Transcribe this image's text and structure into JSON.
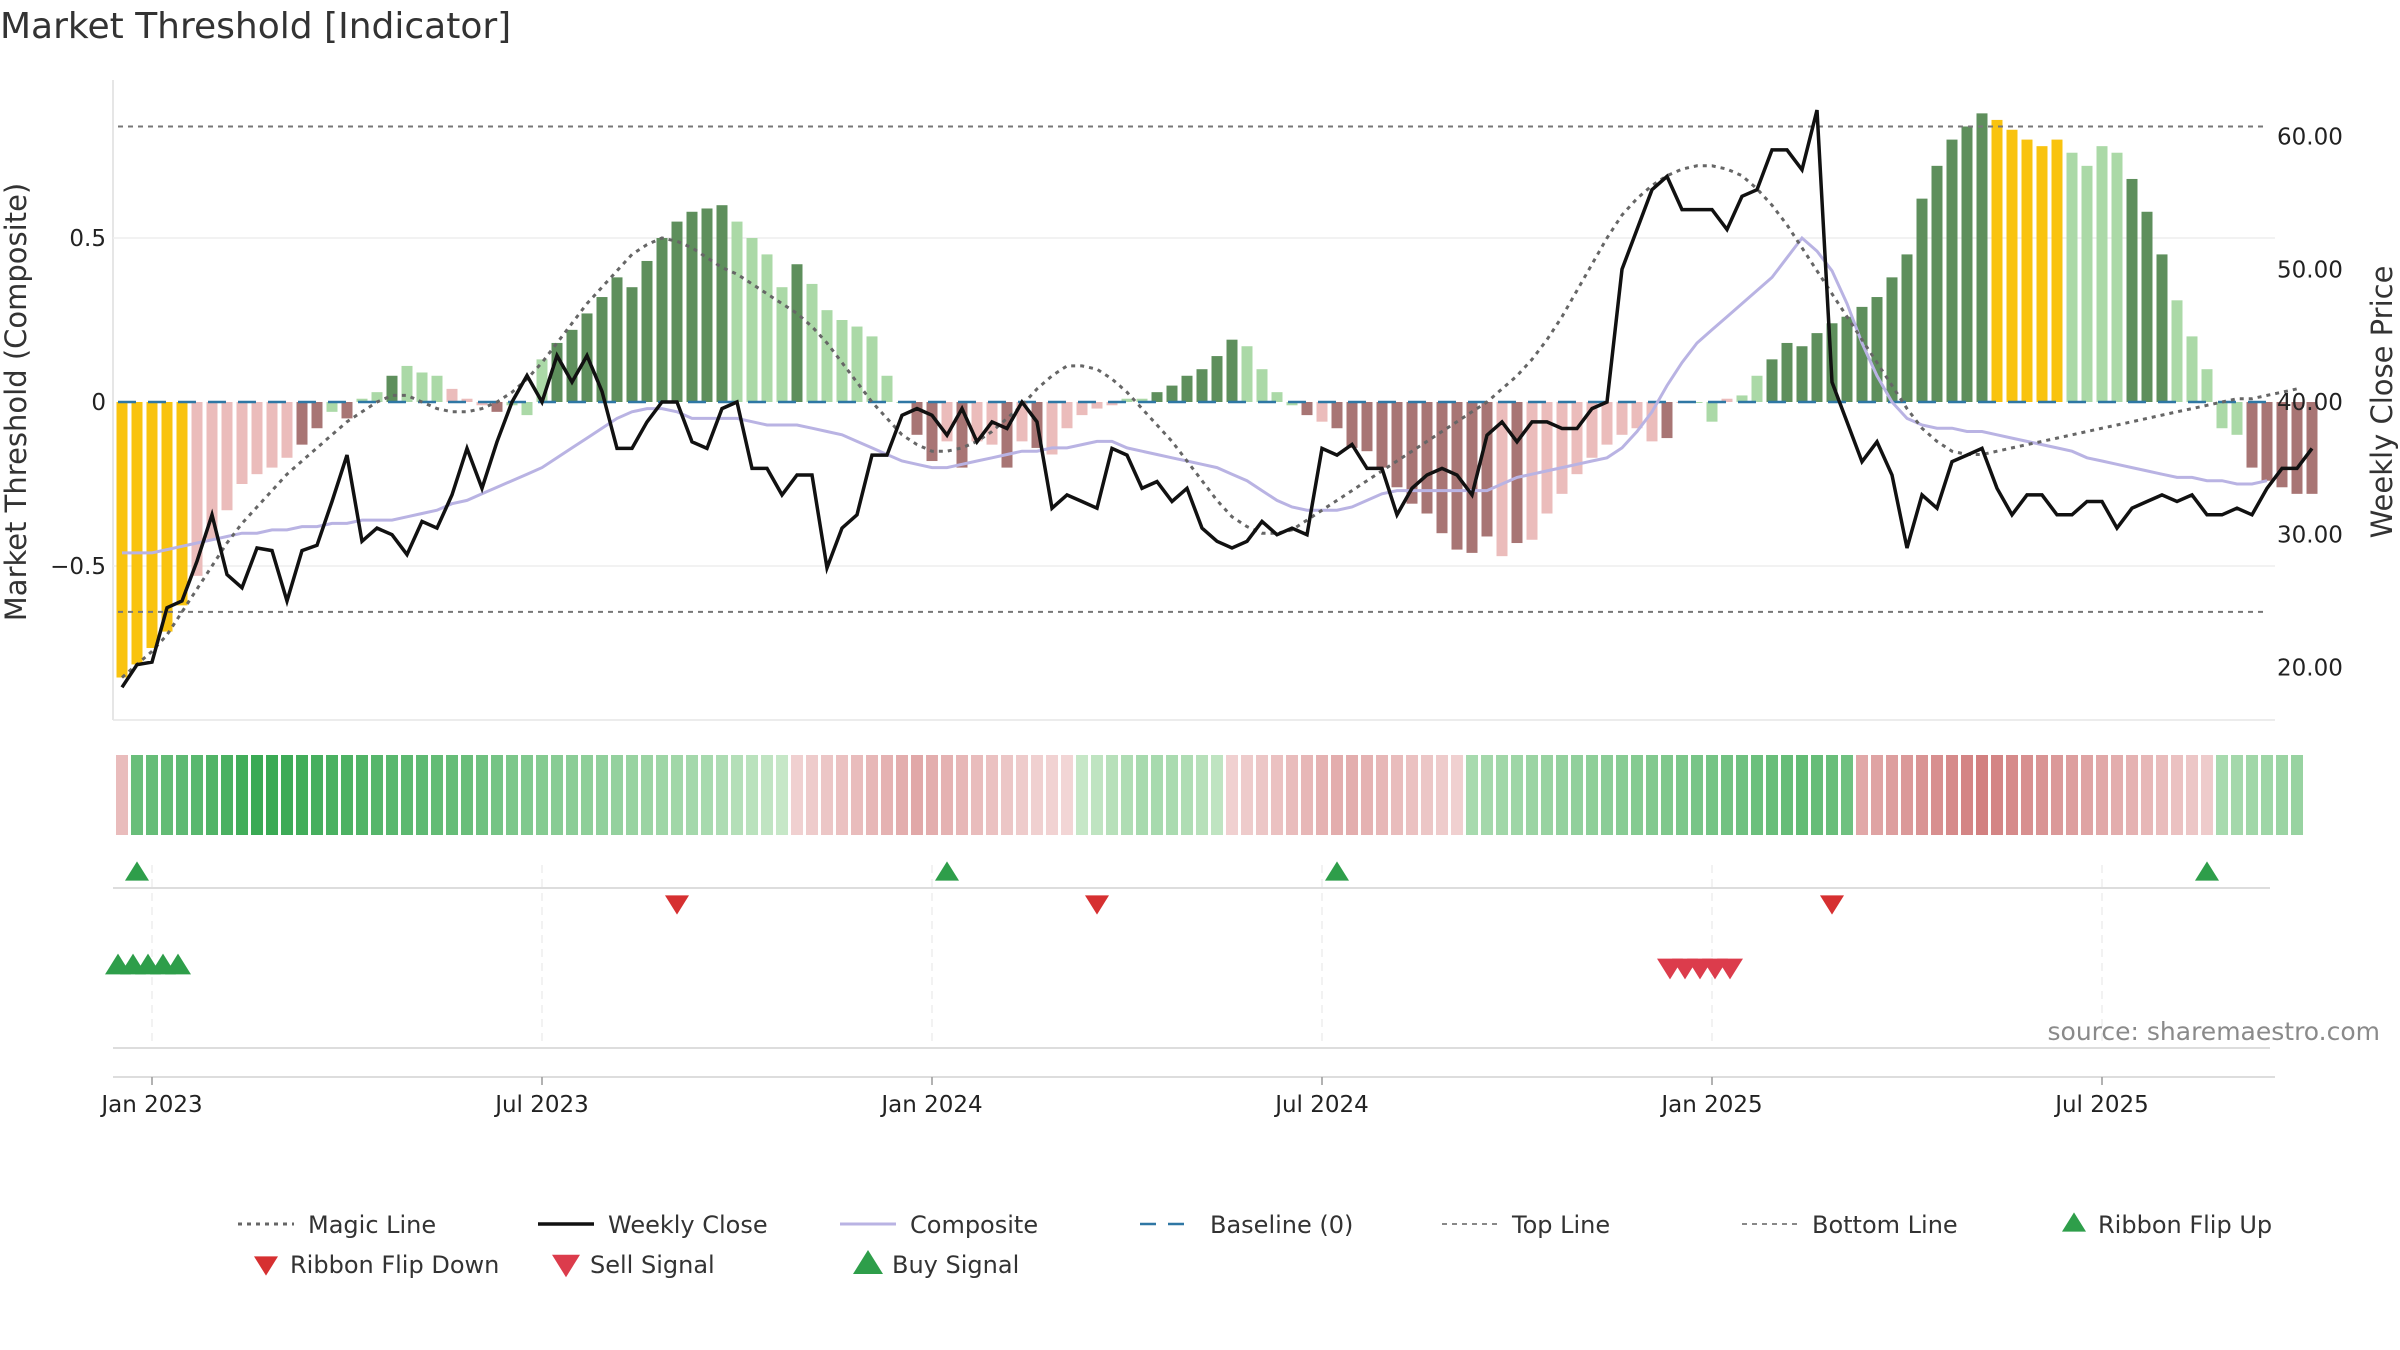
{
  "title": "Market Threshold [Indicator]",
  "source_text": "source: sharemaestro.com",
  "colors": {
    "gold": "#f9c30f",
    "green_dark": "#5e8f5c",
    "green_light": "#abd9a7",
    "red_dark": "#a87574",
    "red_light": "#ebbcbb",
    "composite": "#b9b3e3",
    "magic": "#666666",
    "close": "#111111",
    "baseline": "#2f77a4",
    "buy": "#2e9e4a",
    "sell": "#dc3c4c",
    "flip_down": "#d63031"
  },
  "chart_data": {
    "type": "bar",
    "title": "Market Threshold [Indicator]",
    "ylabel_left": "Market Threshold (Composite)",
    "ylabel_right": "Weekly Close Price",
    "left_ticks": [
      "0.5",
      "0",
      "−0.5"
    ],
    "left_tick_values": [
      0.5,
      0,
      -0.5
    ],
    "right_ticks": [
      "60.00",
      "50.00",
      "40.00",
      "30.00",
      "20.00"
    ],
    "right_tick_values": [
      60,
      50,
      40,
      30,
      20
    ],
    "ylim_left": [
      -0.98,
      0.98
    ],
    "ylim_right": [
      17.0,
      65.5
    ],
    "top_line": 0.84,
    "bottom_line": -0.64,
    "x_ticks": [
      "Jan 2023",
      "Jul 2023",
      "Jan 2024",
      "Jul 2024",
      "Jan 2025",
      "Jul 2025"
    ],
    "x_tick_weeks": [
      2,
      28,
      54,
      80,
      106,
      132
    ],
    "n_weeks": 144,
    "composite_bars": [
      -0.84,
      -0.8,
      -0.75,
      -0.7,
      -0.62,
      -0.53,
      -0.42,
      -0.33,
      -0.25,
      -0.22,
      -0.2,
      -0.17,
      -0.13,
      -0.08,
      -0.03,
      -0.05,
      0.01,
      0.03,
      0.08,
      0.11,
      0.09,
      0.08,
      0.04,
      0.01,
      -0.01,
      -0.03,
      -0.01,
      -0.04,
      0.13,
      0.18,
      0.22,
      0.27,
      0.32,
      0.38,
      0.35,
      0.43,
      0.5,
      0.55,
      0.58,
      0.59,
      0.6,
      0.55,
      0.5,
      0.45,
      0.35,
      0.42,
      0.36,
      0.28,
      0.25,
      0.23,
      0.2,
      0.08,
      0.0,
      -0.1,
      -0.18,
      -0.12,
      -0.2,
      -0.12,
      -0.13,
      -0.2,
      -0.12,
      -0.14,
      -0.16,
      -0.08,
      -0.04,
      -0.02,
      -0.01,
      0.01,
      0.01,
      0.03,
      0.05,
      0.08,
      0.1,
      0.14,
      0.19,
      0.17,
      0.1,
      0.03,
      -0.01,
      -0.04,
      -0.06,
      -0.08,
      -0.14,
      -0.15,
      -0.2,
      -0.26,
      -0.31,
      -0.34,
      -0.4,
      -0.45,
      -0.46,
      -0.41,
      -0.47,
      -0.43,
      -0.42,
      -0.34,
      -0.28,
      -0.22,
      -0.17,
      -0.13,
      -0.1,
      -0.08,
      -0.12,
      -0.11,
      0.0,
      0.0,
      -0.06,
      0.01,
      0.02,
      0.08,
      0.13,
      0.18,
      0.17,
      0.21,
      0.24,
      0.26,
      0.29,
      0.32,
      0.38,
      0.45,
      0.62,
      0.72,
      0.8,
      0.84,
      0.88,
      0.86,
      0.83,
      0.8,
      0.78,
      0.8,
      0.76,
      0.72,
      0.78,
      0.76,
      0.68,
      0.58,
      0.45,
      0.31,
      0.2,
      0.1,
      -0.08,
      -0.1,
      -0.2,
      -0.24,
      -0.26,
      -0.28,
      -0.28
    ],
    "bar_tier": [
      "gold",
      "gold",
      "gold",
      "gold",
      "gold",
      "rl",
      "rl",
      "rl",
      "rl",
      "rl",
      "rl",
      "rl",
      "rd",
      "rd",
      "gl",
      "rd",
      "gl",
      "gl",
      "gd",
      "gl",
      "gl",
      "gl",
      "rl",
      "rl",
      "rl",
      "rd",
      "gl",
      "gl",
      "gl",
      "gd",
      "gd",
      "gd",
      "gd",
      "gd",
      "gd",
      "gd",
      "gd",
      "gd",
      "gd",
      "gd",
      "gd",
      "gl",
      "gl",
      "gl",
      "gl",
      "gd",
      "gl",
      "gl",
      "gl",
      "gl",
      "gl",
      "gl",
      "gl",
      "rd",
      "rd",
      "rl",
      "rd",
      "rl",
      "rl",
      "rd",
      "rl",
      "rd",
      "rl",
      "rl",
      "rl",
      "rl",
      "rl",
      "gl",
      "gl",
      "gd",
      "gd",
      "gd",
      "gd",
      "gd",
      "gd",
      "gl",
      "gl",
      "gl",
      "gl",
      "rd",
      "rl",
      "rd",
      "rd",
      "rd",
      "rd",
      "rd",
      "rd",
      "rd",
      "rd",
      "rd",
      "rd",
      "rd",
      "rl",
      "rd",
      "rl",
      "rl",
      "rl",
      "rl",
      "rl",
      "rl",
      "rl",
      "rl",
      "rl",
      "rd",
      "rl",
      "gl",
      "gl",
      "rl",
      "gl",
      "gl",
      "gd",
      "gd",
      "gd",
      "gd",
      "gd",
      "gd",
      "gd",
      "gd",
      "gd",
      "gd",
      "gd",
      "gd",
      "gd",
      "gd",
      "gd",
      "gold",
      "gold",
      "gold",
      "gold",
      "gold",
      "gl",
      "gl",
      "gl",
      "gl",
      "gd",
      "gd",
      "gd",
      "gl",
      "gl",
      "gl",
      "gl",
      "gl",
      "rd",
      "rd",
      "rd",
      "rd",
      "rd",
      "rd",
      "rd"
    ],
    "series": [
      {
        "name": "Weekly Close",
        "axis": "right",
        "values": [
          18.5,
          20.2,
          20.4,
          24.5,
          25.0,
          28.0,
          31.5,
          27.0,
          26.0,
          29.0,
          28.8,
          25.0,
          28.8,
          29.2,
          32.5,
          36.0,
          29.5,
          30.5,
          30.0,
          28.5,
          31.0,
          30.5,
          33.0,
          36.5,
          33.5,
          37.0,
          40.0,
          42.0,
          40.0,
          43.5,
          41.5,
          43.5,
          40.8,
          36.5,
          36.5,
          38.5,
          40.0,
          40.0,
          37.0,
          36.5,
          39.5,
          40.0,
          35.0,
          35.0,
          33.0,
          34.5,
          34.5,
          27.5,
          30.5,
          31.5,
          36.0,
          36.0,
          39.0,
          39.5,
          39.0,
          37.5,
          39.5,
          37.0,
          38.5,
          38.0,
          40.0,
          38.5,
          32.0,
          33.0,
          32.5,
          32.0,
          36.5,
          36.0,
          33.5,
          34.0,
          32.5,
          33.5,
          30.5,
          29.5,
          29.0,
          29.5,
          31.0,
          30.0,
          30.5,
          30.0,
          36.5,
          36.0,
          36.8,
          35.0,
          35.0,
          31.5,
          33.5,
          34.5,
          35.0,
          34.5,
          33.0,
          37.5,
          38.5,
          37.0,
          38.5,
          38.5,
          38.0,
          38.0,
          39.5,
          40.0,
          50.0,
          53.0,
          56.0,
          57.0,
          54.5,
          54.5,
          54.5,
          53.0,
          55.5,
          56.0,
          59.0,
          59.0,
          57.5,
          62.0,
          41.5,
          38.5,
          35.5,
          37.0,
          34.5,
          29.0,
          33.0,
          32.0,
          35.5,
          36.0,
          36.5,
          33.5,
          31.5,
          33.0,
          33.0,
          31.5,
          31.5,
          32.5,
          32.5,
          30.5,
          32.0,
          32.5,
          33.0,
          32.5,
          33.0,
          31.5,
          31.5,
          32.0,
          31.5,
          33.5,
          35.0,
          35.0,
          36.5
        ]
      },
      {
        "name": "Magic Line",
        "axis": "left",
        "values": [
          -0.84,
          -0.8,
          -0.76,
          -0.71,
          -0.64,
          -0.57,
          -0.5,
          -0.43,
          -0.37,
          -0.32,
          -0.27,
          -0.22,
          -0.18,
          -0.14,
          -0.1,
          -0.06,
          -0.03,
          0.0,
          0.02,
          0.02,
          0.0,
          -0.02,
          -0.03,
          -0.03,
          -0.02,
          0.0,
          0.03,
          0.07,
          0.12,
          0.18,
          0.24,
          0.3,
          0.35,
          0.4,
          0.45,
          0.48,
          0.5,
          0.49,
          0.47,
          0.44,
          0.41,
          0.39,
          0.36,
          0.33,
          0.3,
          0.27,
          0.23,
          0.18,
          0.12,
          0.06,
          0.0,
          -0.05,
          -0.1,
          -0.13,
          -0.15,
          -0.15,
          -0.14,
          -0.12,
          -0.09,
          -0.05,
          -0.01,
          0.04,
          0.08,
          0.11,
          0.11,
          0.1,
          0.07,
          0.03,
          -0.02,
          -0.07,
          -0.12,
          -0.18,
          -0.24,
          -0.3,
          -0.35,
          -0.38,
          -0.4,
          -0.4,
          -0.39,
          -0.36,
          -0.33,
          -0.3,
          -0.27,
          -0.24,
          -0.21,
          -0.18,
          -0.15,
          -0.12,
          -0.09,
          -0.06,
          -0.03,
          0.0,
          0.04,
          0.08,
          0.13,
          0.19,
          0.26,
          0.34,
          0.42,
          0.5,
          0.57,
          0.62,
          0.66,
          0.69,
          0.71,
          0.72,
          0.72,
          0.71,
          0.69,
          0.65,
          0.6,
          0.54,
          0.47,
          0.4,
          0.33,
          0.26,
          0.19,
          0.12,
          0.05,
          -0.02,
          -0.08,
          -0.12,
          -0.15,
          -0.16,
          -0.16,
          -0.15,
          -0.14,
          -0.13,
          -0.12,
          -0.11,
          -0.1,
          -0.09,
          -0.08,
          -0.07,
          -0.06,
          -0.05,
          -0.04,
          -0.03,
          -0.02,
          -0.01,
          0.0,
          0.01,
          0.01,
          0.02,
          0.03,
          0.04
        ]
      },
      {
        "name": "Composite",
        "axis": "left",
        "values": [
          -0.46,
          -0.46,
          -0.46,
          -0.45,
          -0.44,
          -0.43,
          -0.42,
          -0.41,
          -0.4,
          -0.4,
          -0.39,
          -0.39,
          -0.38,
          -0.38,
          -0.37,
          -0.37,
          -0.36,
          -0.36,
          -0.36,
          -0.35,
          -0.34,
          -0.33,
          -0.31,
          -0.3,
          -0.28,
          -0.26,
          -0.24,
          -0.22,
          -0.2,
          -0.17,
          -0.14,
          -0.11,
          -0.08,
          -0.05,
          -0.03,
          -0.02,
          -0.02,
          -0.03,
          -0.05,
          -0.05,
          -0.05,
          -0.05,
          -0.06,
          -0.07,
          -0.07,
          -0.07,
          -0.08,
          -0.09,
          -0.1,
          -0.12,
          -0.14,
          -0.16,
          -0.18,
          -0.19,
          -0.2,
          -0.2,
          -0.19,
          -0.18,
          -0.17,
          -0.16,
          -0.15,
          -0.15,
          -0.14,
          -0.14,
          -0.13,
          -0.12,
          -0.12,
          -0.14,
          -0.15,
          -0.16,
          -0.17,
          -0.18,
          -0.19,
          -0.2,
          -0.22,
          -0.24,
          -0.27,
          -0.3,
          -0.32,
          -0.33,
          -0.33,
          -0.33,
          -0.32,
          -0.3,
          -0.28,
          -0.27,
          -0.27,
          -0.27,
          -0.27,
          -0.27,
          -0.27,
          -0.27,
          -0.25,
          -0.23,
          -0.22,
          -0.21,
          -0.2,
          -0.19,
          -0.18,
          -0.17,
          -0.14,
          -0.09,
          -0.03,
          0.05,
          0.12,
          0.18,
          0.22,
          0.26,
          0.3,
          0.34,
          0.38,
          0.44,
          0.5,
          0.46,
          0.4,
          0.3,
          0.18,
          0.08,
          0.0,
          -0.05,
          -0.07,
          -0.08,
          -0.08,
          -0.09,
          -0.09,
          -0.1,
          -0.11,
          -0.12,
          -0.13,
          -0.14,
          -0.15,
          -0.17,
          -0.18,
          -0.19,
          -0.2,
          -0.21,
          -0.22,
          -0.23,
          -0.23,
          -0.24,
          -0.24,
          -0.25,
          -0.25,
          -0.24
        ]
      }
    ],
    "ribbon_values": [
      -0.3,
      0.7,
      0.72,
      0.74,
      0.76,
      0.8,
      0.85,
      0.9,
      0.95,
      1.0,
      1.0,
      0.98,
      0.95,
      0.92,
      0.9,
      0.88,
      0.85,
      0.82,
      0.8,
      0.78,
      0.76,
      0.74,
      0.72,
      0.7,
      0.66,
      0.62,
      0.58,
      0.55,
      0.52,
      0.5,
      0.48,
      0.46,
      0.44,
      0.42,
      0.4,
      0.38,
      0.36,
      0.34,
      0.32,
      0.3,
      0.26,
      0.22,
      0.18,
      0.14,
      0.1,
      -0.1,
      -0.15,
      -0.2,
      -0.25,
      -0.3,
      -0.35,
      -0.4,
      -0.45,
      -0.5,
      -0.45,
      -0.4,
      -0.35,
      -0.3,
      -0.25,
      -0.2,
      -0.15,
      -0.1,
      -0.08,
      -0.05,
      0.1,
      0.15,
      0.2,
      0.25,
      0.3,
      0.3,
      0.28,
      0.25,
      0.2,
      0.15,
      -0.1,
      -0.15,
      -0.2,
      -0.25,
      -0.3,
      -0.35,
      -0.4,
      -0.45,
      -0.45,
      -0.4,
      -0.35,
      -0.3,
      -0.25,
      -0.2,
      -0.15,
      -0.1,
      0.3,
      0.32,
      0.34,
      0.36,
      0.38,
      0.4,
      0.42,
      0.44,
      0.46,
      0.48,
      0.5,
      0.52,
      0.54,
      0.56,
      0.58,
      0.6,
      0.62,
      0.64,
      0.66,
      0.68,
      0.7,
      0.72,
      0.74,
      0.72,
      0.7,
      0.66,
      -0.5,
      -0.55,
      -0.6,
      -0.65,
      -0.7,
      -0.75,
      -0.8,
      -0.85,
      -0.9,
      -0.85,
      -0.8,
      -0.75,
      -0.7,
      -0.65,
      -0.6,
      -0.55,
      -0.5,
      -0.45,
      -0.4,
      -0.35,
      -0.3,
      -0.25,
      -0.2,
      -0.15,
      0.3,
      0.32,
      0.34,
      0.36,
      0.38,
      0.4
    ],
    "ribbon_flip_up_weeks": [
      1,
      55,
      81,
      139
    ],
    "ribbon_flip_down_weeks": [
      37,
      65,
      114
    ],
    "buy_signal_weeks": [
      0,
      1,
      2,
      3,
      4
    ],
    "sell_signal_weeks": [
      103,
      104,
      105,
      106,
      107
    ],
    "legend": [
      {
        "label": "Magic Line",
        "style": "dotted"
      },
      {
        "label": "Weekly Close",
        "style": "line"
      },
      {
        "label": "Composite",
        "style": "line-light"
      },
      {
        "label": "Baseline (0)",
        "style": "dashed"
      },
      {
        "label": "Top Line",
        "style": "dotted-light"
      },
      {
        "label": "Bottom Line",
        "style": "dotted-light"
      },
      {
        "label": "Ribbon Flip Up",
        "style": "triangle-up"
      },
      {
        "label": "Ribbon Flip Down",
        "style": "triangle-down"
      },
      {
        "label": "Sell Signal",
        "style": "triangle-down-big"
      },
      {
        "label": "Buy Signal",
        "style": "triangle-up-big"
      }
    ],
    "legend_placement": "bottom"
  }
}
